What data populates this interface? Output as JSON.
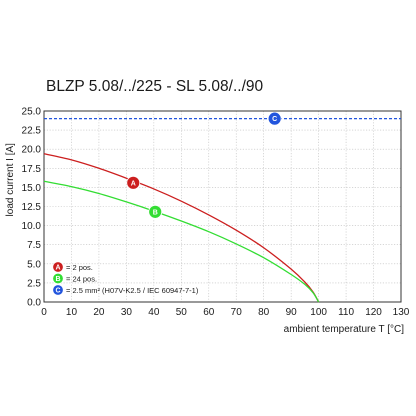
{
  "chart_data": {
    "type": "line",
    "title": "BLZP 5.08/../225 - SL 5.08/../90",
    "xlabel": "ambient temperature T [°C]",
    "ylabel": "load current I [A]",
    "xlim": [
      0,
      130
    ],
    "ylim": [
      0,
      25
    ],
    "xticks": [
      "0",
      "10",
      "20",
      "30",
      "40",
      "50",
      "60",
      "70",
      "80",
      "90",
      "100",
      "110",
      "120",
      "130"
    ],
    "yticks": [
      "0.0",
      "2.5",
      "5.0",
      "7.5",
      "10.0",
      "12.5",
      "15.0",
      "17.5",
      "20.0",
      "22.5",
      "25.0"
    ],
    "grid": true,
    "series": [
      {
        "marker": "A",
        "color": "#cc1f1f",
        "x": [
          0,
          10,
          20,
          30,
          40,
          50,
          60,
          70,
          80,
          90,
          95,
          98,
          100
        ],
        "y": [
          19.4,
          18.6,
          17.5,
          16.2,
          14.8,
          13.2,
          11.4,
          9.4,
          7.1,
          4.3,
          2.6,
          1.3,
          0
        ]
      },
      {
        "marker": "B",
        "color": "#33dd33",
        "x": [
          0,
          10,
          20,
          30,
          40,
          50,
          60,
          70,
          80,
          90,
          95,
          98,
          100
        ],
        "y": [
          15.8,
          15.1,
          14.2,
          13.1,
          11.9,
          10.6,
          9.2,
          7.6,
          5.8,
          3.6,
          2.3,
          1.2,
          0
        ]
      },
      {
        "marker": "C",
        "color": "#2255dd",
        "dashed": true,
        "x": [
          0,
          130
        ],
        "y": [
          24,
          24
        ]
      }
    ],
    "markers": [
      {
        "label": "A",
        "x": 32.5,
        "y": 15.6,
        "color": "#cc1f1f"
      },
      {
        "label": "B",
        "x": 40.5,
        "y": 11.8,
        "color": "#33dd33"
      },
      {
        "label": "C",
        "x": 84,
        "y": 24,
        "color": "#2255dd"
      }
    ],
    "legend": {
      "placement": "bottom-left",
      "items": [
        {
          "marker": "A",
          "color": "#cc1f1f",
          "text": "= 2 pos."
        },
        {
          "marker": "B",
          "color": "#33dd33",
          "text": "= 24 pos."
        },
        {
          "marker": "C",
          "color": "#2255dd",
          "text": "= 2.5 mm² (H07V-K2.5 / IEC 60947-7-1)"
        }
      ]
    }
  }
}
